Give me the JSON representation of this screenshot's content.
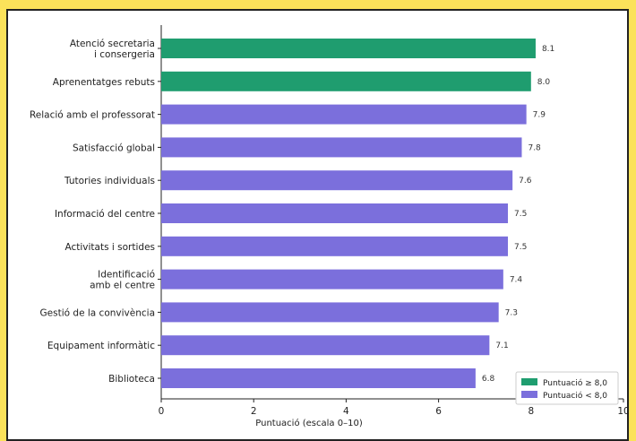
{
  "colors": {
    "page_background": "#fbe25a",
    "high": "#1f9d6f",
    "low": "#7b6fdc"
  },
  "chart_data": {
    "type": "bar",
    "orientation": "horizontal",
    "title": "",
    "xlabel": "Puntuació (escala 0–10)",
    "ylabel": "",
    "xlim": [
      0,
      10
    ],
    "xticks": [
      0,
      2,
      4,
      6,
      8,
      10
    ],
    "grid": false,
    "legend_position": "bottom-right",
    "threshold": 8.0,
    "categories": [
      [
        "Atenció secretaria",
        "i consergeria"
      ],
      [
        "Aprenentatges rebuts"
      ],
      [
        "Relació amb el professorat"
      ],
      [
        "Satisfacció global"
      ],
      [
        "Tutories individuals"
      ],
      [
        "Informació del centre"
      ],
      [
        "Activitats i sortides"
      ],
      [
        "Identificació",
        "amb el centre"
      ],
      [
        "Gestió de la convivència"
      ],
      [
        "Equipament informàtic"
      ],
      [
        "Biblioteca"
      ]
    ],
    "values": [
      8.1,
      8.0,
      7.9,
      7.8,
      7.6,
      7.5,
      7.5,
      7.4,
      7.3,
      7.1,
      6.8
    ],
    "value_labels": [
      "8.1",
      "8.0",
      "7.9",
      "7.8",
      "7.6",
      "7.5",
      "7.5",
      "7.4",
      "7.3",
      "7.1",
      "6.8"
    ],
    "legend": [
      {
        "label": "Puntuació ≥ 8,0",
        "color_key": "high"
      },
      {
        "label": "Puntuació < 8,0",
        "color_key": "low"
      }
    ]
  }
}
